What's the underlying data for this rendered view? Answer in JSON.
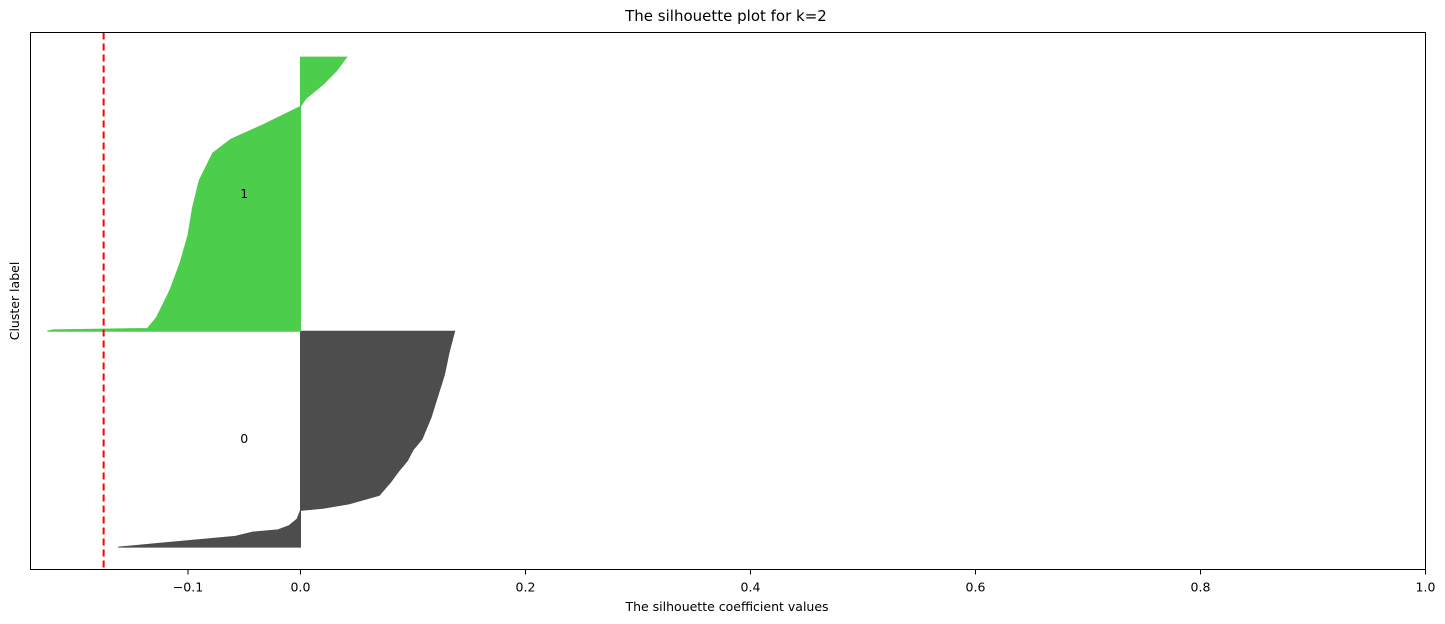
{
  "chart_data": {
    "type": "area",
    "title": "The silhouette plot for k=2",
    "xlabel": "The silhouette coefficient values",
    "ylabel": "Cluster label",
    "xlim": [
      -0.24,
      1.0
    ],
    "xticks": [
      -0.1,
      0.0,
      0.2,
      0.4,
      0.6,
      0.8,
      1.0
    ],
    "xtick_labels": [
      "−0.1",
      "0.0",
      "0.2",
      "0.4",
      "0.6",
      "0.8",
      "1.0"
    ],
    "ylim": [
      0,
      480
    ],
    "yticks_visible": false,
    "grid": false,
    "average_silhouette_score": -0.175,
    "average_line_color": "#ff0000",
    "clusters": [
      {
        "label": "0",
        "color": "#4d4d4d",
        "y_lower": 20,
        "y_upper": 213,
        "text_x": -0.05,
        "text_y": 116,
        "profile": [
          [
            0.0,
            -0.162
          ],
          [
            0.02,
            -0.12
          ],
          [
            0.05,
            -0.058
          ],
          [
            0.07,
            -0.042
          ],
          [
            0.08,
            -0.02
          ],
          [
            0.1,
            -0.01
          ],
          [
            0.13,
            -0.003
          ],
          [
            0.17,
            0.0
          ],
          [
            0.18,
            0.02
          ],
          [
            0.2,
            0.043
          ],
          [
            0.24,
            0.07
          ],
          [
            0.3,
            0.08
          ],
          [
            0.35,
            0.087
          ],
          [
            0.4,
            0.095
          ],
          [
            0.45,
            0.1
          ],
          [
            0.5,
            0.108
          ],
          [
            0.55,
            0.112
          ],
          [
            0.6,
            0.116
          ],
          [
            0.7,
            0.122
          ],
          [
            0.8,
            0.128
          ],
          [
            0.9,
            0.132
          ],
          [
            1.0,
            0.137
          ]
        ]
      },
      {
        "label": "1",
        "color": "#4ccd4c",
        "y_lower": 213,
        "y_upper": 458,
        "text_x": -0.05,
        "text_y": 335,
        "profile": [
          [
            0.0,
            -0.225
          ],
          [
            0.005,
            -0.22
          ],
          [
            0.01,
            -0.136
          ],
          [
            0.05,
            -0.128
          ],
          [
            0.15,
            -0.116
          ],
          [
            0.25,
            -0.107
          ],
          [
            0.35,
            -0.1
          ],
          [
            0.45,
            -0.096
          ],
          [
            0.55,
            -0.09
          ],
          [
            0.65,
            -0.078
          ],
          [
            0.7,
            -0.062
          ],
          [
            0.75,
            -0.035
          ],
          [
            0.78,
            -0.02
          ],
          [
            0.82,
            0.0
          ],
          [
            0.85,
            0.005
          ],
          [
            0.9,
            0.02
          ],
          [
            0.95,
            0.032
          ],
          [
            1.0,
            0.041
          ]
        ]
      }
    ]
  }
}
